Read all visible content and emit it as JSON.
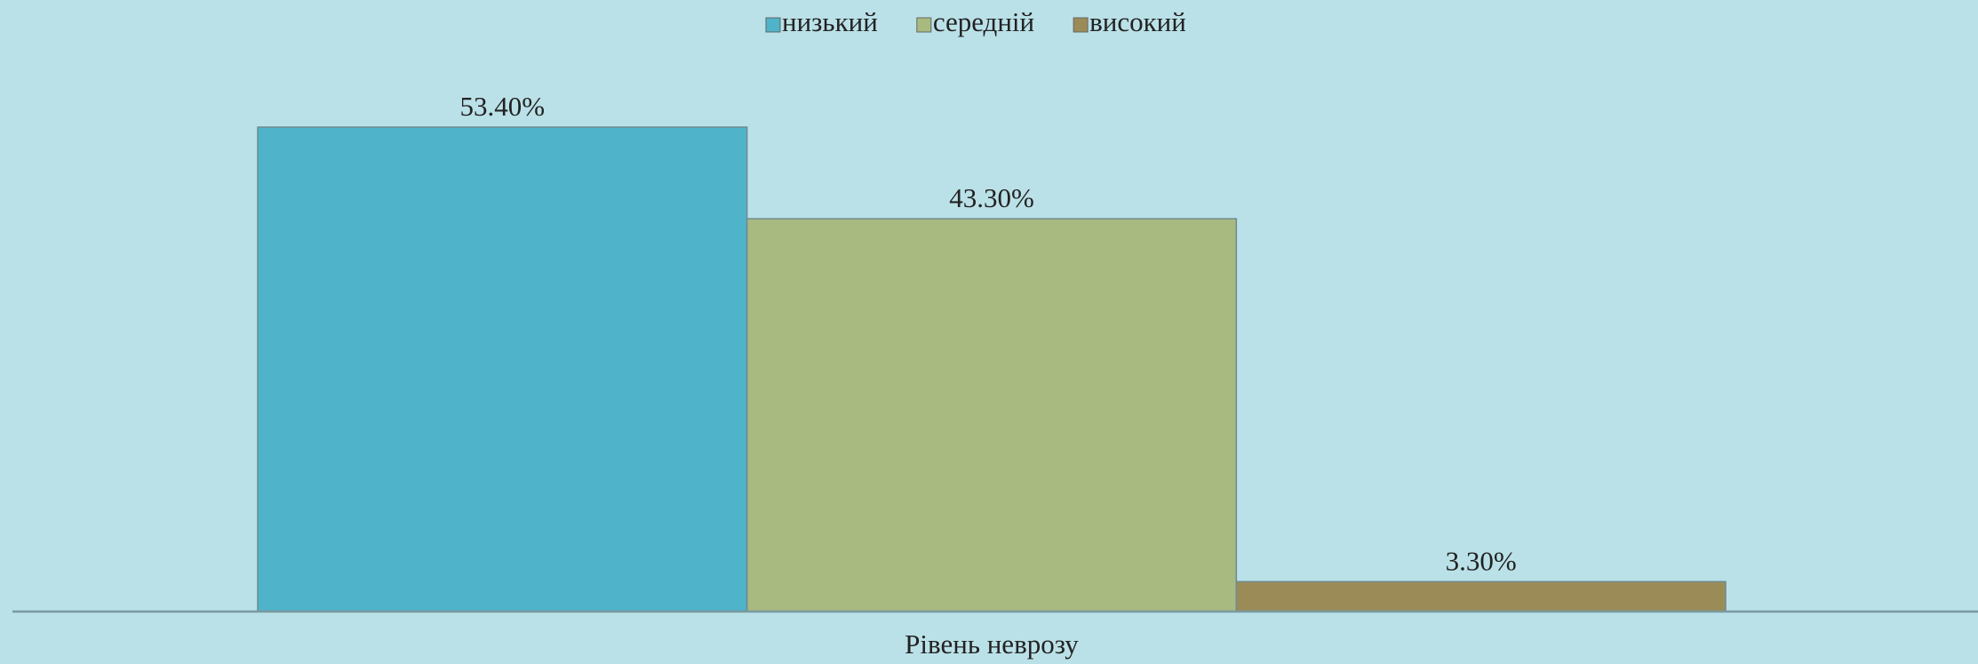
{
  "chart_data": {
    "type": "bar",
    "categories": [
      "Рівень неврозу"
    ],
    "series": [
      {
        "name": "низький",
        "color": "#4fb3c9",
        "values": [
          53.4
        ],
        "value_labels": [
          "53.40%"
        ]
      },
      {
        "name": "середній",
        "color": "#a8ba80",
        "values": [
          43.3
        ],
        "value_labels": [
          "43.30%"
        ]
      },
      {
        "name": "високий",
        "color": "#9b8c57",
        "values": [
          3.3
        ],
        "value_labels": [
          "3.30%"
        ]
      }
    ],
    "legend": "top"
  }
}
